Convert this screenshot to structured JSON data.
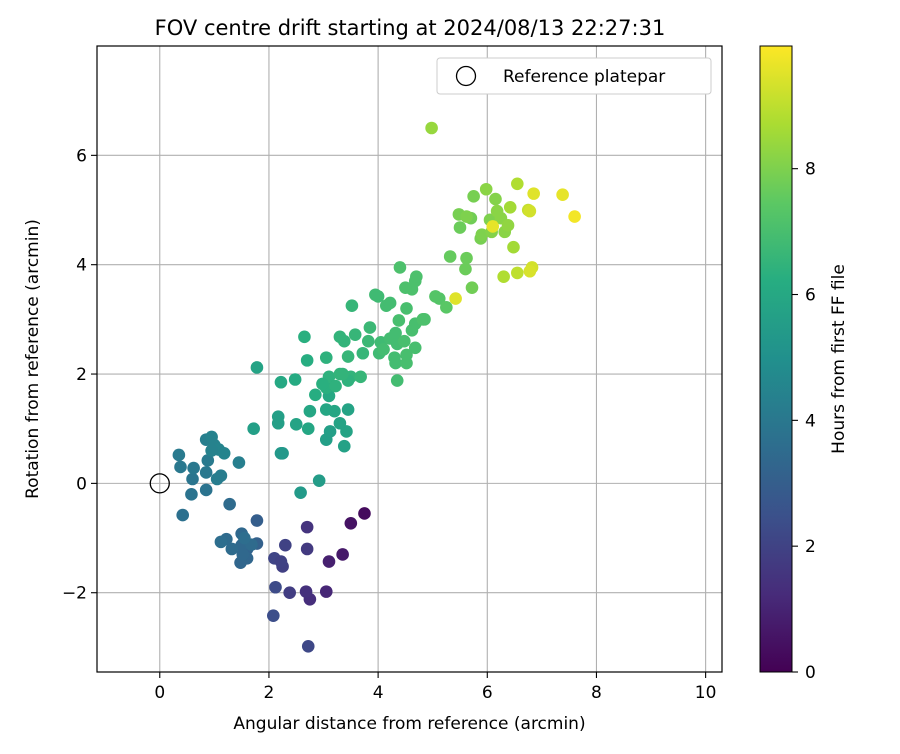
{
  "chart_data": {
    "type": "scatter",
    "title": "FOV centre drift starting at 2024/08/13 22:27:31",
    "xlabel": "Angular distance from reference (arcmin)",
    "ylabel": "Rotation from reference (arcmin)",
    "xlim": [
      -1.15,
      10.3
    ],
    "ylim": [
      -3.45,
      8.0
    ],
    "x_ticks": [
      0,
      2,
      4,
      6,
      8,
      10
    ],
    "y_ticks": [
      -2,
      0,
      2,
      4,
      6
    ],
    "x_tick_labels": [
      "0",
      "2",
      "4",
      "6",
      "8",
      "10"
    ],
    "y_tick_labels": [
      "−2",
      "0",
      "2",
      "4",
      "6"
    ],
    "grid": true,
    "legend": {
      "placement": "top-right",
      "entries": [
        "Reference platepar"
      ]
    },
    "reference_point": {
      "name": "Reference platepar",
      "x": 0,
      "y": 0,
      "marker": "open-circle"
    },
    "colorbar": {
      "label": "Hours from first FF file",
      "colormap": "viridis",
      "range": [
        0,
        9.95
      ],
      "ticks": [
        0,
        2,
        4,
        6,
        8
      ],
      "tick_labels": [
        "0",
        "2",
        "4",
        "6",
        "8"
      ]
    },
    "points": [
      [
        3.75,
        -0.55,
        0.3
      ],
      [
        3.5,
        -0.73,
        0.5
      ],
      [
        3.35,
        -1.3,
        0.7
      ],
      [
        3.1,
        -1.43,
        0.9
      ],
      [
        3.05,
        -1.98,
        1.1
      ],
      [
        2.75,
        -2.12,
        1.3
      ],
      [
        2.68,
        -1.98,
        1.4
      ],
      [
        2.7,
        -0.8,
        1.5
      ],
      [
        2.7,
        -1.2,
        1.7
      ],
      [
        2.38,
        -2.0,
        1.8
      ],
      [
        2.25,
        -1.52,
        1.9
      ],
      [
        2.3,
        -1.13,
        2.0
      ],
      [
        2.1,
        -1.37,
        2.1
      ],
      [
        2.12,
        -1.9,
        2.3
      ],
      [
        2.08,
        -2.42,
        2.4
      ],
      [
        2.72,
        -2.98,
        2.2
      ],
      [
        2.22,
        -1.43,
        2.0
      ],
      [
        1.78,
        -0.68,
        3.0
      ],
      [
        1.78,
        -1.1,
        3.1
      ],
      [
        1.6,
        -1.2,
        3.2
      ],
      [
        1.6,
        -1.37,
        3.3
      ],
      [
        1.48,
        -1.45,
        3.3
      ],
      [
        1.5,
        -1.13,
        3.4
      ],
      [
        1.5,
        -0.92,
        3.4
      ],
      [
        1.32,
        -1.2,
        3.5
      ],
      [
        1.28,
        -0.38,
        3.5
      ],
      [
        1.22,
        -1.02,
        3.5
      ],
      [
        1.12,
        -1.07,
        3.6
      ],
      [
        1.52,
        -1.3,
        3.4
      ],
      [
        1.68,
        -1.12,
        3.5
      ],
      [
        1.55,
        -1.0,
        3.6
      ],
      [
        0.42,
        -0.58,
        3.7
      ],
      [
        0.85,
        -0.12,
        3.8
      ],
      [
        0.58,
        -0.2,
        3.8
      ],
      [
        0.6,
        0.08,
        3.9
      ],
      [
        0.85,
        0.2,
        4.0
      ],
      [
        0.62,
        0.28,
        4.0
      ],
      [
        0.38,
        0.3,
        4.0
      ],
      [
        0.35,
        0.52,
        4.1
      ],
      [
        0.88,
        0.42,
        4.1
      ],
      [
        1.05,
        0.08,
        4.2
      ],
      [
        1.12,
        0.14,
        4.2
      ],
      [
        1.45,
        0.38,
        4.3
      ],
      [
        0.85,
        0.8,
        4.3
      ],
      [
        0.95,
        0.85,
        4.4
      ],
      [
        1.0,
        0.7,
        4.4
      ],
      [
        1.08,
        0.62,
        4.5
      ],
      [
        1.18,
        0.55,
        4.5
      ],
      [
        0.95,
        0.6,
        4.4
      ],
      [
        2.25,
        0.55,
        5.3
      ],
      [
        2.22,
        0.55,
        5.3
      ],
      [
        2.58,
        -0.17,
        5.4
      ],
      [
        2.92,
        0.05,
        5.5
      ],
      [
        3.05,
        0.8,
        5.6
      ],
      [
        3.12,
        0.95,
        5.6
      ],
      [
        3.38,
        0.68,
        5.7
      ],
      [
        3.42,
        0.95,
        5.8
      ],
      [
        3.3,
        1.1,
        5.8
      ],
      [
        3.45,
        1.35,
        5.8
      ],
      [
        3.2,
        1.32,
        5.9
      ],
      [
        3.05,
        1.35,
        5.9
      ],
      [
        3.1,
        1.6,
        6.0
      ],
      [
        2.75,
        1.32,
        5.9
      ],
      [
        2.5,
        1.08,
        5.8
      ],
      [
        2.72,
        1.0,
        5.9
      ],
      [
        2.17,
        1.1,
        5.6
      ],
      [
        2.17,
        1.22,
        5.6
      ],
      [
        1.72,
        1.0,
        5.6
      ],
      [
        1.78,
        2.12,
        5.8
      ],
      [
        2.22,
        1.85,
        6.0
      ],
      [
        2.48,
        1.9,
        6.1
      ],
      [
        2.7,
        2.25,
        6.2
      ],
      [
        2.65,
        2.68,
        6.3
      ],
      [
        3.05,
        1.75,
        6.3
      ],
      [
        3.1,
        1.95,
        6.4
      ],
      [
        3.22,
        1.78,
        6.4
      ],
      [
        3.3,
        2.0,
        6.5
      ],
      [
        3.5,
        1.95,
        6.5
      ],
      [
        3.45,
        1.88,
        6.4
      ],
      [
        3.35,
        2.0,
        6.5
      ],
      [
        3.45,
        2.32,
        6.6
      ],
      [
        3.68,
        1.95,
        6.6
      ],
      [
        3.72,
        2.38,
        6.6
      ],
      [
        3.38,
        2.6,
        6.5
      ],
      [
        3.3,
        2.68,
        6.5
      ],
      [
        3.58,
        2.72,
        6.6
      ],
      [
        3.52,
        3.25,
        6.6
      ],
      [
        3.82,
        2.6,
        6.7
      ],
      [
        3.85,
        2.85,
        6.7
      ],
      [
        3.05,
        2.3,
        6.4
      ],
      [
        2.85,
        1.62,
        6.2
      ],
      [
        2.98,
        1.82,
        6.3
      ],
      [
        3.95,
        3.45,
        6.8
      ],
      [
        4.15,
        3.25,
        6.9
      ],
      [
        4.22,
        3.3,
        6.9
      ],
      [
        4.02,
        2.38,
        6.8
      ],
      [
        4.05,
        2.58,
        6.8
      ],
      [
        4.22,
        2.65,
        6.9
      ],
      [
        4.32,
        2.75,
        6.9
      ],
      [
        4.35,
        2.55,
        6.9
      ],
      [
        4.3,
        2.3,
        6.9
      ],
      [
        4.52,
        2.35,
        7.0
      ],
      [
        4.48,
        2.6,
        7.0
      ],
      [
        4.68,
        2.48,
        7.0
      ],
      [
        4.32,
        2.2,
        6.9
      ],
      [
        4.35,
        1.88,
        6.9
      ],
      [
        4.52,
        2.2,
        7.0
      ],
      [
        4.62,
        2.8,
        7.0
      ],
      [
        4.68,
        2.92,
        7.0
      ],
      [
        4.82,
        3.0,
        7.1
      ],
      [
        4.85,
        3.0,
        7.1
      ],
      [
        4.38,
        2.98,
        7.0
      ],
      [
        4.52,
        3.2,
        7.0
      ],
      [
        4.62,
        3.55,
        7.1
      ],
      [
        4.68,
        3.7,
        7.1
      ],
      [
        4.7,
        3.78,
        7.1
      ],
      [
        4.4,
        3.95,
        7.1
      ],
      [
        4.5,
        3.58,
        7.1
      ],
      [
        5.05,
        3.42,
        7.3
      ],
      [
        5.12,
        3.38,
        7.3
      ],
      [
        5.25,
        3.22,
        7.4
      ],
      [
        4.0,
        3.42,
        6.8
      ],
      [
        4.1,
        2.45,
        6.9
      ],
      [
        5.32,
        4.15,
        7.6
      ],
      [
        5.5,
        4.68,
        7.7
      ],
      [
        5.6,
        3.92,
        7.7
      ],
      [
        5.62,
        4.12,
        7.7
      ],
      [
        5.7,
        4.85,
        7.8
      ],
      [
        5.72,
        3.58,
        7.8
      ],
      [
        5.75,
        5.25,
        7.9
      ],
      [
        5.88,
        4.48,
        7.9
      ],
      [
        5.9,
        4.55,
        8.0
      ],
      [
        6.05,
        4.82,
        8.0
      ],
      [
        6.08,
        4.6,
        8.1
      ],
      [
        6.15,
        5.2,
        8.1
      ],
      [
        6.18,
        4.98,
        8.2
      ],
      [
        6.25,
        4.85,
        8.2
      ],
      [
        6.32,
        4.6,
        8.2
      ],
      [
        6.38,
        4.72,
        8.3
      ],
      [
        5.98,
        5.38,
        8.2
      ],
      [
        5.48,
        4.92,
        7.9
      ],
      [
        5.62,
        4.88,
        8.0
      ],
      [
        6.42,
        5.05,
        8.6
      ],
      [
        6.48,
        4.32,
        8.6
      ],
      [
        6.55,
        5.48,
        8.8
      ],
      [
        6.3,
        3.78,
        8.8
      ],
      [
        6.55,
        3.85,
        9.0
      ],
      [
        6.75,
        5.0,
        9.1
      ],
      [
        6.78,
        4.98,
        9.3
      ],
      [
        6.82,
        3.95,
        9.3
      ],
      [
        6.78,
        3.88,
        9.4
      ],
      [
        6.85,
        5.3,
        9.5
      ],
      [
        7.38,
        5.28,
        9.6
      ],
      [
        7.6,
        4.88,
        9.8
      ],
      [
        5.42,
        3.38,
        9.5
      ],
      [
        6.1,
        4.7,
        9.6
      ],
      [
        4.98,
        6.5,
        8.4
      ]
    ]
  }
}
